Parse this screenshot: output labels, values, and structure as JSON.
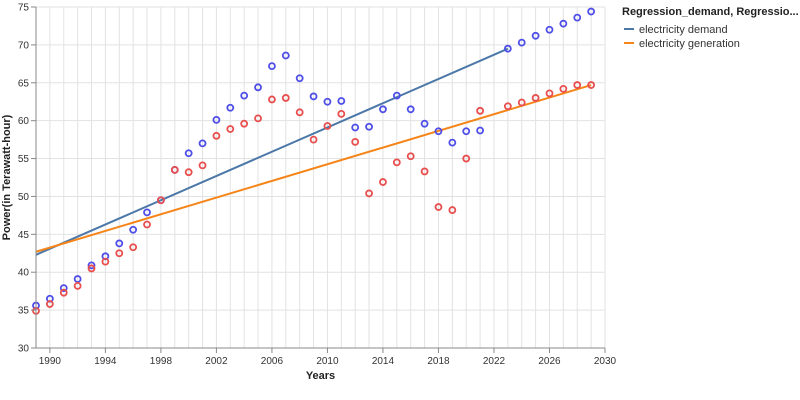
{
  "chart_data": {
    "type": "scatter",
    "xlabel": "Years",
    "ylabel": "Power(in Terawatt-hour)",
    "xlim": [
      1989.5,
      2030.5
    ],
    "ylim": [
      30,
      75
    ],
    "x_ticks": [
      1990,
      1994,
      1998,
      2002,
      2006,
      2010,
      2014,
      2018,
      2022,
      2026,
      2030
    ],
    "y_ticks": [
      30,
      35,
      40,
      45,
      50,
      55,
      60,
      65,
      70,
      75
    ],
    "grid": true,
    "legend": {
      "title": "Regression_demand, Regressio...",
      "placement": "right",
      "items": [
        {
          "label": "electricity demand",
          "color": "#4c78a8"
        },
        {
          "label": "electricity generation",
          "color": "#f58518"
        }
      ]
    },
    "series": [
      {
        "name": "electricity demand",
        "marker_color": "#4f4fe8",
        "x": [
          1989,
          1990,
          1991,
          1992,
          1993,
          1994,
          1995,
          1996,
          1997,
          1998,
          1999,
          2000,
          2001,
          2002,
          2003,
          2004,
          2005,
          2006,
          2007,
          2008,
          2009,
          2010,
          2011,
          2012,
          2013,
          2014,
          2015,
          2016,
          2017,
          2018,
          2019,
          2020,
          2021,
          2023,
          2024,
          2025,
          2026,
          2027,
          2028,
          2029
        ],
        "y": [
          35.6,
          36.5,
          37.9,
          39.1,
          40.9,
          42.1,
          43.8,
          45.6,
          47.9,
          49.5,
          53.5,
          55.7,
          57.0,
          60.1,
          61.7,
          63.3,
          64.4,
          67.2,
          68.6,
          65.6,
          63.2,
          62.5,
          62.6,
          59.1,
          59.2,
          61.5,
          63.3,
          61.5,
          59.6,
          58.6,
          57.1,
          58.6,
          58.7,
          69.5,
          70.3,
          71.2,
          72.0,
          72.8,
          73.6,
          74.4
        ]
      },
      {
        "name": "electricity generation",
        "marker_color": "#e84f4f",
        "x": [
          1989,
          1990,
          1991,
          1992,
          1993,
          1994,
          1995,
          1996,
          1997,
          1998,
          1999,
          2000,
          2001,
          2002,
          2003,
          2004,
          2005,
          2006,
          2007,
          2008,
          2009,
          2010,
          2011,
          2012,
          2013,
          2014,
          2015,
          2016,
          2017,
          2018,
          2019,
          2020,
          2021,
          2023,
          2024,
          2025,
          2026,
          2027,
          2028,
          2029
        ],
        "y": [
          34.9,
          35.8,
          37.3,
          38.2,
          40.5,
          41.4,
          42.5,
          43.3,
          46.3,
          49.5,
          53.5,
          53.2,
          54.1,
          58.0,
          58.9,
          59.6,
          60.3,
          62.8,
          63.0,
          61.1,
          57.5,
          59.3,
          60.9,
          57.2,
          50.4,
          51.9,
          54.5,
          55.3,
          53.3,
          48.6,
          48.2,
          55.0,
          61.3,
          61.9,
          62.4,
          63.0,
          63.6,
          64.2,
          64.7,
          64.7
        ]
      }
    ],
    "regression_lines": [
      {
        "name": "electricity demand",
        "color": "#4c78a8",
        "x": [
          1989,
          2023
        ],
        "y": [
          42.3,
          69.5
        ]
      },
      {
        "name": "electricity generation",
        "color": "#f58518",
        "x": [
          1989,
          2029
        ],
        "y": [
          42.7,
          64.7
        ]
      }
    ]
  }
}
